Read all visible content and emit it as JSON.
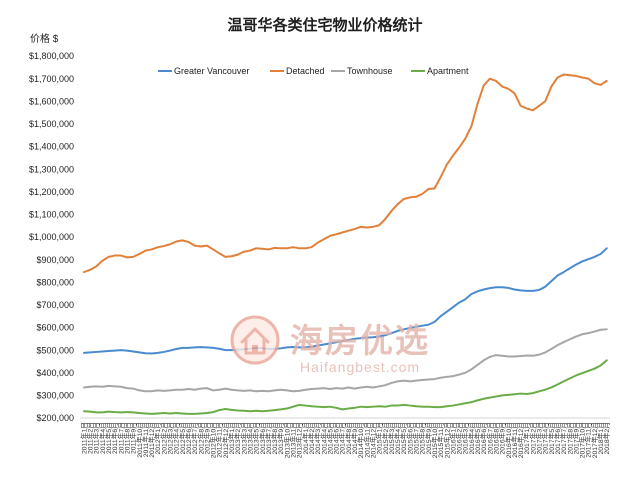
{
  "chart_data": {
    "type": "line",
    "title": "温哥华各类住宅物业价格统计",
    "ylabel": "价格 $",
    "ylim": [
      200000,
      1800000
    ],
    "yticks": [
      200000,
      300000,
      400000,
      500000,
      600000,
      700000,
      800000,
      900000,
      1000000,
      1100000,
      1200000,
      1300000,
      1400000,
      1500000,
      1600000,
      1700000,
      1800000
    ],
    "ytick_labels": [
      "$200,000",
      "$300,000",
      "$400,000",
      "$500,000",
      "$600,000",
      "$700,000",
      "$800,000",
      "$900,000",
      "$1,000,000",
      "$1,100,000",
      "$1,200,000",
      "$1,300,000",
      "$1,400,000",
      "$1,500,000",
      "$1,600,000",
      "$1,700,000",
      "$1,800,000"
    ],
    "grid": false,
    "legend": "top-center",
    "categories": [
      "2011年1月",
      "2011年2月",
      "2011年3月",
      "2011年4月",
      "2011年5月",
      "2011年6月",
      "2011年7月",
      "2011年8月",
      "2011年9月",
      "2011年10月",
      "2011年11月",
      "2011年12月",
      "2012年1月",
      "2012年2月",
      "2012年3月",
      "2012年4月",
      "2012年5月",
      "2012年6月",
      "2012年7月",
      "2012年8月",
      "2012年9月",
      "2012年10月",
      "2012年11月",
      "2012年12月",
      "2013年1月",
      "2013年2月",
      "2013年3月",
      "2013年4月",
      "2013年5月",
      "2013年6月",
      "2013年7月",
      "2013年8月",
      "2013年9月",
      "2013年10月",
      "2013年11月",
      "2013年12月",
      "2014年1月",
      "2014年2月",
      "2014年3月",
      "2014年4月",
      "2014年5月",
      "2014年6月",
      "2014年7月",
      "2014年8月",
      "2014年9月",
      "2014年10月",
      "2014年11月",
      "2014年12月",
      "2015年1月",
      "2015年2月",
      "2015年3月",
      "2015年4月",
      "2015年5月",
      "2015年6月",
      "2015年7月",
      "2015年8月",
      "2015年9月",
      "2015年10月",
      "2015年11月",
      "2015年12月",
      "2016年1月",
      "2016年2月",
      "2016年3月",
      "2016年4月",
      "2016年5月",
      "2016年6月",
      "2016年7月",
      "2016年8月",
      "2016年9月",
      "2016年10月",
      "2016年11月",
      "2016年12月",
      "2017年1月",
      "2017年2月",
      "2017年3月",
      "2017年4月",
      "2017年5月",
      "2017年6月",
      "2017年7月",
      "2017年8月",
      "2017年9月",
      "2017年10月",
      "2017年11月",
      "2017年12月",
      "2018年1月",
      "2018年2月"
    ],
    "series": [
      {
        "name": "Greater Vancouver",
        "color": "#4a8bd0",
        "values": [
          488000,
          490000,
          492000,
          494000,
          496000,
          498000,
          500000,
          498000,
          494000,
          490000,
          486000,
          485000,
          488000,
          492000,
          498000,
          505000,
          510000,
          510000,
          512000,
          513000,
          512000,
          510000,
          506000,
          500000,
          500000,
          502000,
          504000,
          506000,
          510000,
          508000,
          505000,
          506000,
          508000,
          512000,
          514000,
          512000,
          512000,
          515000,
          520000,
          525000,
          530000,
          535000,
          540000,
          545000,
          550000,
          553000,
          555000,
          557000,
          560000,
          566000,
          575000,
          585000,
          592000,
          598000,
          603000,
          608000,
          612000,
          625000,
          650000,
          670000,
          690000,
          710000,
          725000,
          748000,
          760000,
          768000,
          774000,
          778000,
          778000,
          775000,
          768000,
          764000,
          762000,
          762000,
          766000,
          780000,
          805000,
          830000,
          845000,
          862000,
          878000,
          892000,
          902000,
          912000,
          925000,
          950000
        ]
      },
      {
        "name": "Detached",
        "color": "#e2803a",
        "values": [
          845000,
          855000,
          870000,
          895000,
          912000,
          918000,
          918000,
          910000,
          912000,
          925000,
          940000,
          945000,
          955000,
          960000,
          968000,
          980000,
          985000,
          978000,
          962000,
          958000,
          962000,
          945000,
          928000,
          912000,
          915000,
          922000,
          935000,
          940000,
          950000,
          948000,
          945000,
          952000,
          950000,
          950000,
          955000,
          950000,
          950000,
          955000,
          975000,
          990000,
          1005000,
          1012000,
          1020000,
          1028000,
          1035000,
          1045000,
          1042000,
          1045000,
          1052000,
          1080000,
          1115000,
          1145000,
          1168000,
          1175000,
          1178000,
          1190000,
          1212000,
          1215000,
          1265000,
          1320000,
          1360000,
          1395000,
          1435000,
          1490000,
          1590000,
          1670000,
          1700000,
          1690000,
          1665000,
          1655000,
          1635000,
          1580000,
          1568000,
          1560000,
          1580000,
          1600000,
          1665000,
          1705000,
          1718000,
          1715000,
          1712000,
          1705000,
          1700000,
          1680000,
          1672000,
          1690000
        ]
      },
      {
        "name": "Townhouse",
        "color": "#a6a6a6",
        "values": [
          335000,
          338000,
          340000,
          338000,
          342000,
          340000,
          338000,
          332000,
          330000,
          322000,
          318000,
          318000,
          322000,
          320000,
          322000,
          325000,
          325000,
          328000,
          325000,
          330000,
          332000,
          322000,
          325000,
          330000,
          325000,
          322000,
          320000,
          322000,
          318000,
          320000,
          318000,
          322000,
          325000,
          322000,
          318000,
          320000,
          325000,
          328000,
          330000,
          332000,
          328000,
          332000,
          330000,
          335000,
          330000,
          335000,
          338000,
          335000,
          340000,
          345000,
          355000,
          362000,
          365000,
          362000,
          365000,
          368000,
          370000,
          372000,
          378000,
          382000,
          385000,
          392000,
          400000,
          415000,
          435000,
          455000,
          470000,
          478000,
          475000,
          472000,
          472000,
          474000,
          476000,
          475000,
          480000,
          490000,
          505000,
          522000,
          535000,
          548000,
          560000,
          570000,
          575000,
          582000,
          590000,
          592000
        ]
      },
      {
        "name": "Apartment",
        "color": "#6aad46",
        "values": [
          230000,
          228000,
          225000,
          225000,
          228000,
          226000,
          225000,
          226000,
          225000,
          222000,
          220000,
          218000,
          220000,
          222000,
          220000,
          222000,
          220000,
          218000,
          218000,
          220000,
          222000,
          226000,
          235000,
          240000,
          236000,
          233000,
          232000,
          230000,
          232000,
          230000,
          232000,
          235000,
          238000,
          242000,
          250000,
          258000,
          255000,
          252000,
          250000,
          248000,
          250000,
          245000,
          238000,
          242000,
          245000,
          250000,
          248000,
          250000,
          252000,
          250000,
          255000,
          255000,
          258000,
          255000,
          252000,
          250000,
          250000,
          248000,
          248000,
          252000,
          255000,
          260000,
          265000,
          270000,
          278000,
          285000,
          290000,
          295000,
          300000,
          302000,
          305000,
          308000,
          306000,
          310000,
          318000,
          325000,
          335000,
          348000,
          362000,
          375000,
          388000,
          398000,
          408000,
          418000,
          432000,
          455000
        ]
      }
    ]
  },
  "watermark": {
    "brand": "海房优选",
    "site": "Haifangbest.com",
    "ring_color": "#eba596",
    "text_color": "#e3b2a8"
  }
}
